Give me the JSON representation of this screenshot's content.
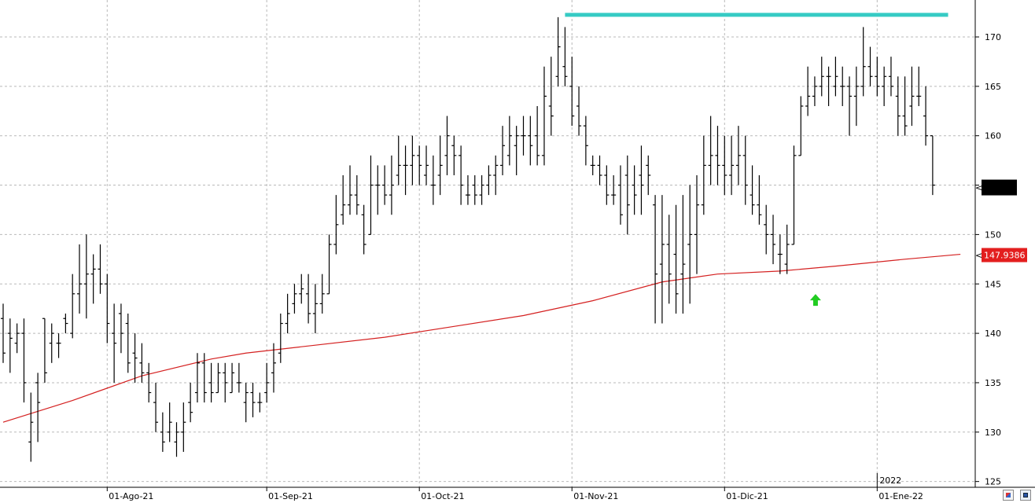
{
  "chart_data": {
    "type": "ohlc",
    "y_range": [
      124,
      174
    ],
    "y_ticks": [
      "125",
      "130",
      "135",
      "140",
      "145",
      "150",
      "155",
      "160",
      "165",
      "170"
    ],
    "x_axis_labels": [
      {
        "text": "01-Ago-21",
        "index": 15
      },
      {
        "text": "01-Sep-21",
        "index": 38
      },
      {
        "text": "01-Oct-21",
        "index": 60
      },
      {
        "text": "01-Nov-21",
        "index": 82
      },
      {
        "text": "01-Dic-21",
        "index": 104
      },
      {
        "text": "01-Ene-22",
        "index": 126
      }
    ],
    "year_marker": {
      "text": "2022",
      "index": 126
    },
    "grid": true,
    "bars": [
      [
        141.5,
        143,
        137,
        138
      ],
      [
        140,
        141.5,
        136,
        139.5
      ],
      [
        139,
        141,
        138,
        140
      ],
      [
        140,
        141.5,
        133,
        135
      ],
      [
        129,
        134,
        127,
        131
      ],
      [
        135,
        136,
        129,
        133
      ],
      [
        141.5,
        141.5,
        135,
        136
      ],
      [
        139,
        141,
        137,
        140
      ],
      [
        139,
        140,
        137.5,
        139
      ],
      [
        141.5,
        142,
        140,
        141
      ],
      [
        140,
        146,
        139.5,
        144
      ],
      [
        144,
        149,
        142,
        145
      ],
      [
        145,
        150,
        141.5,
        146
      ],
      [
        146,
        148,
        143,
        146.5
      ],
      [
        146.5,
        149,
        144,
        145
      ],
      [
        145,
        146,
        139,
        141
      ],
      [
        140,
        143,
        135,
        139
      ],
      [
        142,
        143,
        138,
        140
      ],
      [
        141,
        142,
        136,
        137
      ],
      [
        138,
        140,
        135,
        137.5
      ],
      [
        137,
        139,
        135,
        136
      ],
      [
        136,
        137,
        133,
        134
      ],
      [
        133,
        135,
        130,
        131
      ],
      [
        130,
        132,
        128,
        129
      ],
      [
        130,
        133,
        129,
        131
      ],
      [
        129,
        131,
        127.5,
        130
      ],
      [
        130,
        133,
        128,
        131
      ],
      [
        133,
        135,
        131,
        132
      ],
      [
        134,
        138,
        133,
        137
      ],
      [
        137,
        138,
        133,
        134
      ],
      [
        135,
        137,
        133,
        134
      ],
      [
        134,
        137,
        134,
        136
      ],
      [
        136,
        137,
        133,
        135
      ],
      [
        134,
        137,
        134,
        136
      ],
      [
        135,
        137,
        134,
        135
      ],
      [
        133,
        135,
        131,
        134
      ],
      [
        134,
        135,
        131.5,
        133
      ],
      [
        133,
        134,
        132,
        133
      ],
      [
        134,
        137,
        133,
        135
      ],
      [
        136,
        139,
        134,
        137
      ],
      [
        138,
        142,
        137,
        141
      ],
      [
        141,
        144,
        140,
        142
      ],
      [
        143,
        145,
        142,
        144
      ],
      [
        144,
        146,
        143,
        144.5
      ],
      [
        144,
        146,
        141,
        142
      ],
      [
        142,
        145,
        140,
        143
      ],
      [
        143,
        146,
        142,
        144
      ],
      [
        144,
        150,
        144,
        149
      ],
      [
        149,
        154,
        148,
        151
      ],
      [
        152,
        156,
        151,
        153
      ],
      [
        153,
        157,
        152,
        154
      ],
      [
        154,
        156,
        152,
        153
      ],
      [
        152,
        153,
        148,
        149
      ],
      [
        150,
        158,
        150,
        155
      ],
      [
        155,
        157,
        152,
        155
      ],
      [
        155,
        157,
        153,
        154
      ],
      [
        154,
        158,
        152,
        155
      ],
      [
        156,
        160,
        155,
        157
      ],
      [
        157,
        159,
        154,
        157
      ],
      [
        157,
        160,
        155,
        158
      ],
      [
        158,
        159,
        155,
        157
      ],
      [
        156,
        159,
        155,
        157
      ],
      [
        155,
        158,
        153,
        155
      ],
      [
        156,
        160,
        154,
        157
      ],
      [
        158,
        162,
        156,
        160
      ],
      [
        159,
        160,
        156,
        158
      ],
      [
        158,
        159,
        153,
        155
      ],
      [
        154,
        156,
        153,
        154
      ],
      [
        155,
        156,
        153,
        154
      ],
      [
        154,
        156,
        153,
        155
      ],
      [
        155,
        157,
        154,
        156
      ],
      [
        156,
        158,
        154,
        157
      ],
      [
        157,
        161,
        156,
        159
      ],
      [
        158,
        162,
        157,
        160
      ],
      [
        159,
        161,
        156,
        160
      ],
      [
        160,
        162,
        158,
        160
      ],
      [
        160,
        162,
        157,
        159
      ],
      [
        160,
        163,
        157,
        158
      ],
      [
        158,
        167,
        157,
        164
      ],
      [
        163,
        168,
        160,
        162
      ],
      [
        166,
        172,
        165,
        169
      ],
      [
        167,
        171,
        165,
        166
      ],
      [
        165,
        168,
        161,
        162
      ],
      [
        163,
        165,
        160,
        161
      ],
      [
        161,
        162,
        157,
        159
      ],
      [
        157,
        158,
        156,
        157
      ],
      [
        157,
        158,
        155,
        156
      ],
      [
        156,
        157,
        153,
        154
      ],
      [
        154,
        156,
        153,
        154
      ],
      [
        155,
        157,
        151,
        152
      ],
      [
        156,
        158,
        150,
        153
      ],
      [
        155,
        157,
        152,
        154
      ],
      [
        156,
        159,
        152,
        155
      ],
      [
        157,
        158,
        154,
        156
      ],
      [
        153,
        154,
        141,
        146
      ],
      [
        147,
        154,
        141,
        149
      ],
      [
        149,
        152,
        143,
        146
      ],
      [
        148,
        153,
        142,
        144
      ],
      [
        146,
        154,
        142,
        147
      ],
      [
        149,
        155,
        143,
        150
      ],
      [
        150,
        156,
        146,
        153
      ],
      [
        153,
        160,
        152,
        157
      ],
      [
        157,
        162,
        155,
        158
      ],
      [
        158,
        161,
        155,
        157
      ],
      [
        157,
        160,
        154,
        156
      ],
      [
        156,
        160,
        154,
        157
      ],
      [
        157,
        161,
        155,
        158
      ],
      [
        158,
        160,
        153,
        155
      ],
      [
        154,
        157,
        152,
        153
      ],
      [
        153,
        156,
        151,
        152
      ],
      [
        151,
        153,
        148,
        150
      ],
      [
        150,
        152,
        147,
        149
      ],
      [
        148,
        150,
        146,
        148
      ],
      [
        147,
        151,
        146,
        149
      ],
      [
        149,
        159,
        149,
        158
      ],
      [
        158,
        164,
        158,
        163
      ],
      [
        163,
        167,
        162,
        164
      ],
      [
        164,
        166,
        163,
        165
      ],
      [
        165,
        168,
        164,
        166
      ],
      [
        166,
        167,
        163,
        166
      ],
      [
        165,
        168,
        164,
        166
      ],
      [
        165,
        167,
        163,
        165
      ],
      [
        165,
        166,
        160,
        164
      ],
      [
        164,
        167,
        161,
        165
      ],
      [
        165,
        171,
        164,
        167
      ],
      [
        167,
        169,
        165,
        166
      ],
      [
        166,
        168,
        164,
        165
      ],
      [
        165,
        167,
        163,
        166
      ],
      [
        166,
        168,
        164,
        165
      ],
      [
        164,
        166,
        160,
        162
      ],
      [
        162,
        166,
        160,
        161
      ],
      [
        163,
        167,
        161,
        164
      ],
      [
        164,
        167,
        163,
        164
      ],
      [
        162,
        165,
        159,
        160
      ],
      [
        160,
        160,
        154,
        155
      ]
    ],
    "moving_average": {
      "name": "",
      "color": "#d42020",
      "last_value_label": "147.9386",
      "points": [
        [
          0,
          131
        ],
        [
          10,
          133.2
        ],
        [
          20,
          135.7
        ],
        [
          30,
          137.4
        ],
        [
          35,
          138
        ],
        [
          45,
          138.8
        ],
        [
          55,
          139.6
        ],
        [
          65,
          140.7
        ],
        [
          75,
          141.8
        ],
        [
          85,
          143.3
        ],
        [
          95,
          145.2
        ],
        [
          103,
          146
        ],
        [
          112,
          146.3
        ],
        [
          120,
          146.8
        ],
        [
          130,
          147.5
        ],
        [
          138,
          148
        ]
      ]
    },
    "resistance_line": {
      "value": 172,
      "from_index": 81,
      "to_index": 136,
      "color": "#36cbc4"
    },
    "last_price_tag": {
      "color": "#000000"
    },
    "annotation_arrow": {
      "index": 117,
      "value": 143.5,
      "color": "#22cc22",
      "direction": "up"
    }
  },
  "colors": {
    "bar": "#000000",
    "grid": "#b9b9b9",
    "ma_tag": "#e31e1e",
    "axis": "#000000"
  },
  "icons": [
    "palette-icon",
    "save-icon"
  ]
}
